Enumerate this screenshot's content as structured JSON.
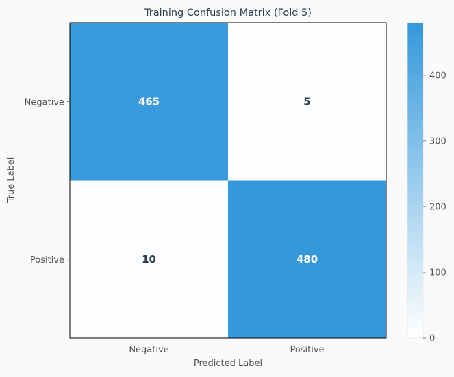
{
  "chart_data": {
    "type": "heatmap",
    "title": "Training Confusion Matrix (Fold 5)",
    "xlabel": "Predicted Label",
    "ylabel": "True Label",
    "x_categories": [
      "Negative",
      "Positive"
    ],
    "y_categories": [
      "Negative",
      "Positive"
    ],
    "matrix": [
      [
        465,
        5
      ],
      [
        10,
        480
      ]
    ],
    "colorbar": {
      "range": [
        0,
        480
      ],
      "ticks": [
        0,
        100,
        200,
        300,
        400
      ],
      "tick_labels": [
        "0",
        "100",
        "200",
        "300",
        "400"
      ]
    },
    "colormap": [
      "#ffffff",
      "#3498db"
    ],
    "text_colors": {
      "dark_cell": "#ffffff",
      "light_cell": "#2c3e50"
    }
  }
}
